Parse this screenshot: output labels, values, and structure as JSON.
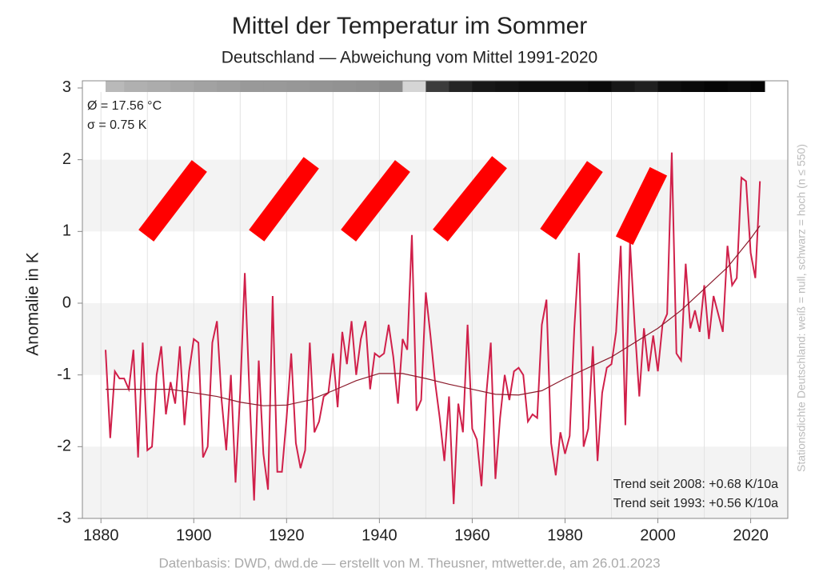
{
  "chart_data": {
    "type": "line",
    "title": "Mittel der Temperatur im Sommer",
    "subtitle": "Deutschland — Abweichung vom Mittel 1991-2020",
    "y_label": "Anomalie in K",
    "side_label": "Stationsdichte Deutschland: weiß = null, schwarz = hoch (n ≤ 550)",
    "source": "Datenbasis: DWD, dwd.de — erstellt von M. Theusner, mtwetter.de, am 26.01.2023",
    "annotations_top": [
      "Ø = 17.56 °C",
      "σ = 0.75 K"
    ],
    "annotations_bottom": [
      "Trend seit 2008: +0.68 K/10a",
      "Trend seit 1993: +0.56 K/10a"
    ],
    "xlim": [
      1876,
      2028
    ],
    "ylim": [
      -3,
      3.1
    ],
    "xticks": [
      1880,
      1900,
      1920,
      1940,
      1960,
      1980,
      2000,
      2020
    ],
    "xgrid": [
      1880,
      1890,
      1900,
      1910,
      1920,
      1930,
      1940,
      1950,
      1960,
      1970,
      1980,
      1990,
      2000,
      2010,
      2020
    ],
    "yticks": [
      -3,
      -2,
      -1,
      0,
      1,
      2,
      3
    ],
    "alternating_bands": true,
    "series": [
      {
        "color": "#d0204a",
        "x": [
          1881,
          1882,
          1883,
          1884,
          1885,
          1886,
          1887,
          1888,
          1889,
          1890,
          1891,
          1892,
          1893,
          1894,
          1895,
          1896,
          1897,
          1898,
          1899,
          1900,
          1901,
          1902,
          1903,
          1904,
          1905,
          1906,
          1907,
          1908,
          1909,
          1910,
          1911,
          1912,
          1913,
          1914,
          1915,
          1916,
          1917,
          1918,
          1919,
          1920,
          1921,
          1922,
          1923,
          1924,
          1925,
          1926,
          1927,
          1928,
          1929,
          1930,
          1931,
          1932,
          1933,
          1934,
          1935,
          1936,
          1937,
          1938,
          1939,
          1940,
          1941,
          1942,
          1943,
          1944,
          1945,
          1946,
          1947,
          1948,
          1949,
          1950,
          1951,
          1952,
          1953,
          1954,
          1955,
          1956,
          1957,
          1958,
          1959,
          1960,
          1961,
          1962,
          1963,
          1964,
          1965,
          1966,
          1967,
          1968,
          1969,
          1970,
          1971,
          1972,
          1973,
          1974,
          1975,
          1976,
          1977,
          1978,
          1979,
          1980,
          1981,
          1982,
          1983,
          1984,
          1985,
          1986,
          1987,
          1988,
          1989,
          1990,
          1991,
          1992,
          1993,
          1994,
          1995,
          1996,
          1997,
          1998,
          1999,
          2000,
          2001,
          2002,
          2003,
          2004,
          2005,
          2006,
          2007,
          2008,
          2009,
          2010,
          2011,
          2012,
          2013,
          2014,
          2015,
          2016,
          2017,
          2018,
          2019,
          2020,
          2021,
          2022
        ],
        "values": [
          -0.65,
          -1.88,
          -0.95,
          -1.05,
          -1.05,
          -1.2,
          -0.65,
          -2.15,
          -0.55,
          -2.05,
          -2.0,
          -1.0,
          -0.6,
          -1.55,
          -1.1,
          -1.4,
          -0.6,
          -1.7,
          -0.95,
          -0.5,
          -0.55,
          -2.15,
          -2.0,
          -0.55,
          -0.25,
          -1.35,
          -2.05,
          -1.0,
          -2.5,
          -1.25,
          0.42,
          -1.25,
          -2.75,
          -0.8,
          -2.1,
          -2.6,
          0.1,
          -2.35,
          -2.35,
          -1.6,
          -0.7,
          -1.95,
          -2.3,
          -2.05,
          -0.55,
          -1.8,
          -1.65,
          -1.3,
          -1.25,
          -0.7,
          -1.45,
          -0.4,
          -0.85,
          -0.25,
          -1.0,
          -0.5,
          -0.25,
          -1.2,
          -0.7,
          -0.75,
          -0.7,
          -0.3,
          -0.75,
          -1.4,
          -0.5,
          -0.65,
          0.95,
          -1.5,
          -1.35,
          0.15,
          -0.45,
          -1.1,
          -1.6,
          -2.2,
          -1.3,
          -2.8,
          -1.4,
          -1.8,
          -0.3,
          -1.75,
          -1.9,
          -2.55,
          -1.3,
          -0.55,
          -2.45,
          -1.6,
          -1.0,
          -1.35,
          -0.95,
          -0.9,
          -1.0,
          -1.65,
          -1.55,
          -1.6,
          -0.3,
          0.05,
          -1.95,
          -2.4,
          -1.8,
          -2.1,
          -1.85,
          -0.35,
          0.7,
          -2.0,
          -1.75,
          -0.6,
          -2.2,
          -1.25,
          -0.9,
          -0.85,
          -0.4,
          0.8,
          -1.7,
          0.85,
          -0.3,
          -1.3,
          -0.35,
          -0.95,
          -0.45,
          -0.95,
          -0.3,
          -0.15,
          2.1,
          -0.7,
          -0.8,
          0.55,
          -0.35,
          -0.1,
          -0.4,
          0.25,
          -0.5,
          0.1,
          -0.15,
          -0.4,
          0.8,
          0.25,
          0.35,
          1.75,
          1.7,
          0.7,
          0.35,
          1.7
        ]
      },
      {
        "color": "#8b1a2b",
        "x": [
          1881,
          1885,
          1890,
          1895,
          1900,
          1905,
          1910,
          1915,
          1920,
          1925,
          1930,
          1935,
          1940,
          1945,
          1950,
          1955,
          1960,
          1965,
          1970,
          1975,
          1980,
          1985,
          1990,
          1995,
          2000,
          2005,
          2010,
          2015,
          2020,
          2022
        ],
        "values": [
          -1.2,
          -1.2,
          -1.2,
          -1.2,
          -1.25,
          -1.3,
          -1.38,
          -1.43,
          -1.42,
          -1.35,
          -1.22,
          -1.08,
          -0.98,
          -0.98,
          -1.05,
          -1.13,
          -1.2,
          -1.27,
          -1.28,
          -1.22,
          -1.05,
          -0.9,
          -0.75,
          -0.55,
          -0.35,
          -0.1,
          0.2,
          0.5,
          0.9,
          1.08
        ]
      }
    ],
    "station_density": {
      "max": 550,
      "x": [
        1881,
        1885,
        1890,
        1895,
        1900,
        1905,
        1910,
        1915,
        1920,
        1925,
        1930,
        1935,
        1940,
        1945,
        1950,
        1955,
        1960,
        1965,
        1970,
        1975,
        1980,
        1985,
        1990,
        1995,
        2000,
        2005,
        2010,
        2015,
        2020,
        2023
      ],
      "values": [
        150,
        170,
        180,
        190,
        200,
        210,
        220,
        220,
        225,
        230,
        235,
        240,
        250,
        90,
        420,
        470,
        500,
        510,
        520,
        520,
        520,
        530,
        500,
        480,
        520,
        530,
        540,
        530,
        540,
        0
      ]
    }
  }
}
